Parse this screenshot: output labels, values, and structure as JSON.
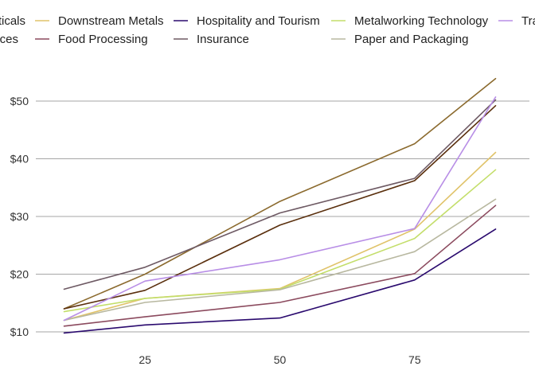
{
  "chart_data": {
    "type": "line",
    "title": "",
    "xlabel": "",
    "ylabel": "",
    "xlim": [
      8,
      92
    ],
    "ylim": [
      9.5,
      55
    ],
    "x_ticks": [
      {
        "value": 25,
        "label": "25"
      },
      {
        "value": 50,
        "label": "50"
      },
      {
        "value": 75,
        "label": "75"
      }
    ],
    "y_ticks": [
      {
        "value": 10,
        "label": "$10"
      },
      {
        "value": 20,
        "label": "$20"
      },
      {
        "value": 30,
        "label": "$30"
      },
      {
        "value": 40,
        "label": "$40"
      },
      {
        "value": 50,
        "label": "$50"
      }
    ],
    "grid": "horizontal",
    "legend_position": "top",
    "x": [
      10,
      25,
      50,
      75,
      90
    ],
    "series": [
      {
        "name": "Biopharmaceuticals",
        "label": "ticals",
        "color": "#8b6a2e",
        "values": [
          14.0,
          20.0,
          32.6,
          42.6,
          53.9
        ]
      },
      {
        "name": "Business Services",
        "label": "ces",
        "color": "#5a2f0d",
        "values": [
          14.0,
          17.2,
          28.5,
          36.2,
          49.2
        ]
      },
      {
        "name": "Downstream Metals",
        "label": "Downstream Metals",
        "color": "#e0c36a",
        "values": [
          12.0,
          15.8,
          17.5,
          27.8,
          41.1
        ]
      },
      {
        "name": "Food Processing",
        "label": "Food Processing",
        "color": "#8b4a5e",
        "values": [
          11.0,
          12.6,
          15.1,
          20.1,
          31.9
        ]
      },
      {
        "name": "Hospitality and Tourism",
        "label": "Hospitality and Tourism",
        "color": "#2a0a6e",
        "values": [
          9.8,
          11.2,
          12.4,
          19.0,
          27.8
        ]
      },
      {
        "name": "Insurance",
        "label": "Insurance",
        "color": "#6e5a64",
        "values": [
          17.4,
          21.2,
          30.6,
          36.6,
          50.2
        ]
      },
      {
        "name": "Metalworking Technology",
        "label": "Metalworking Technology",
        "color": "#c3de6a",
        "values": [
          13.5,
          15.8,
          17.4,
          26.2,
          38.1
        ]
      },
      {
        "name": "Paper and Packaging",
        "label": "Paper and Packaging",
        "color": "#b8b8a0",
        "values": [
          12.0,
          15.1,
          17.3,
          23.9,
          33.0
        ]
      },
      {
        "name": "Transportation",
        "label": "Tra",
        "color": "#b88ee6",
        "values": [
          12.0,
          18.8,
          22.5,
          27.9,
          50.7
        ]
      }
    ]
  }
}
